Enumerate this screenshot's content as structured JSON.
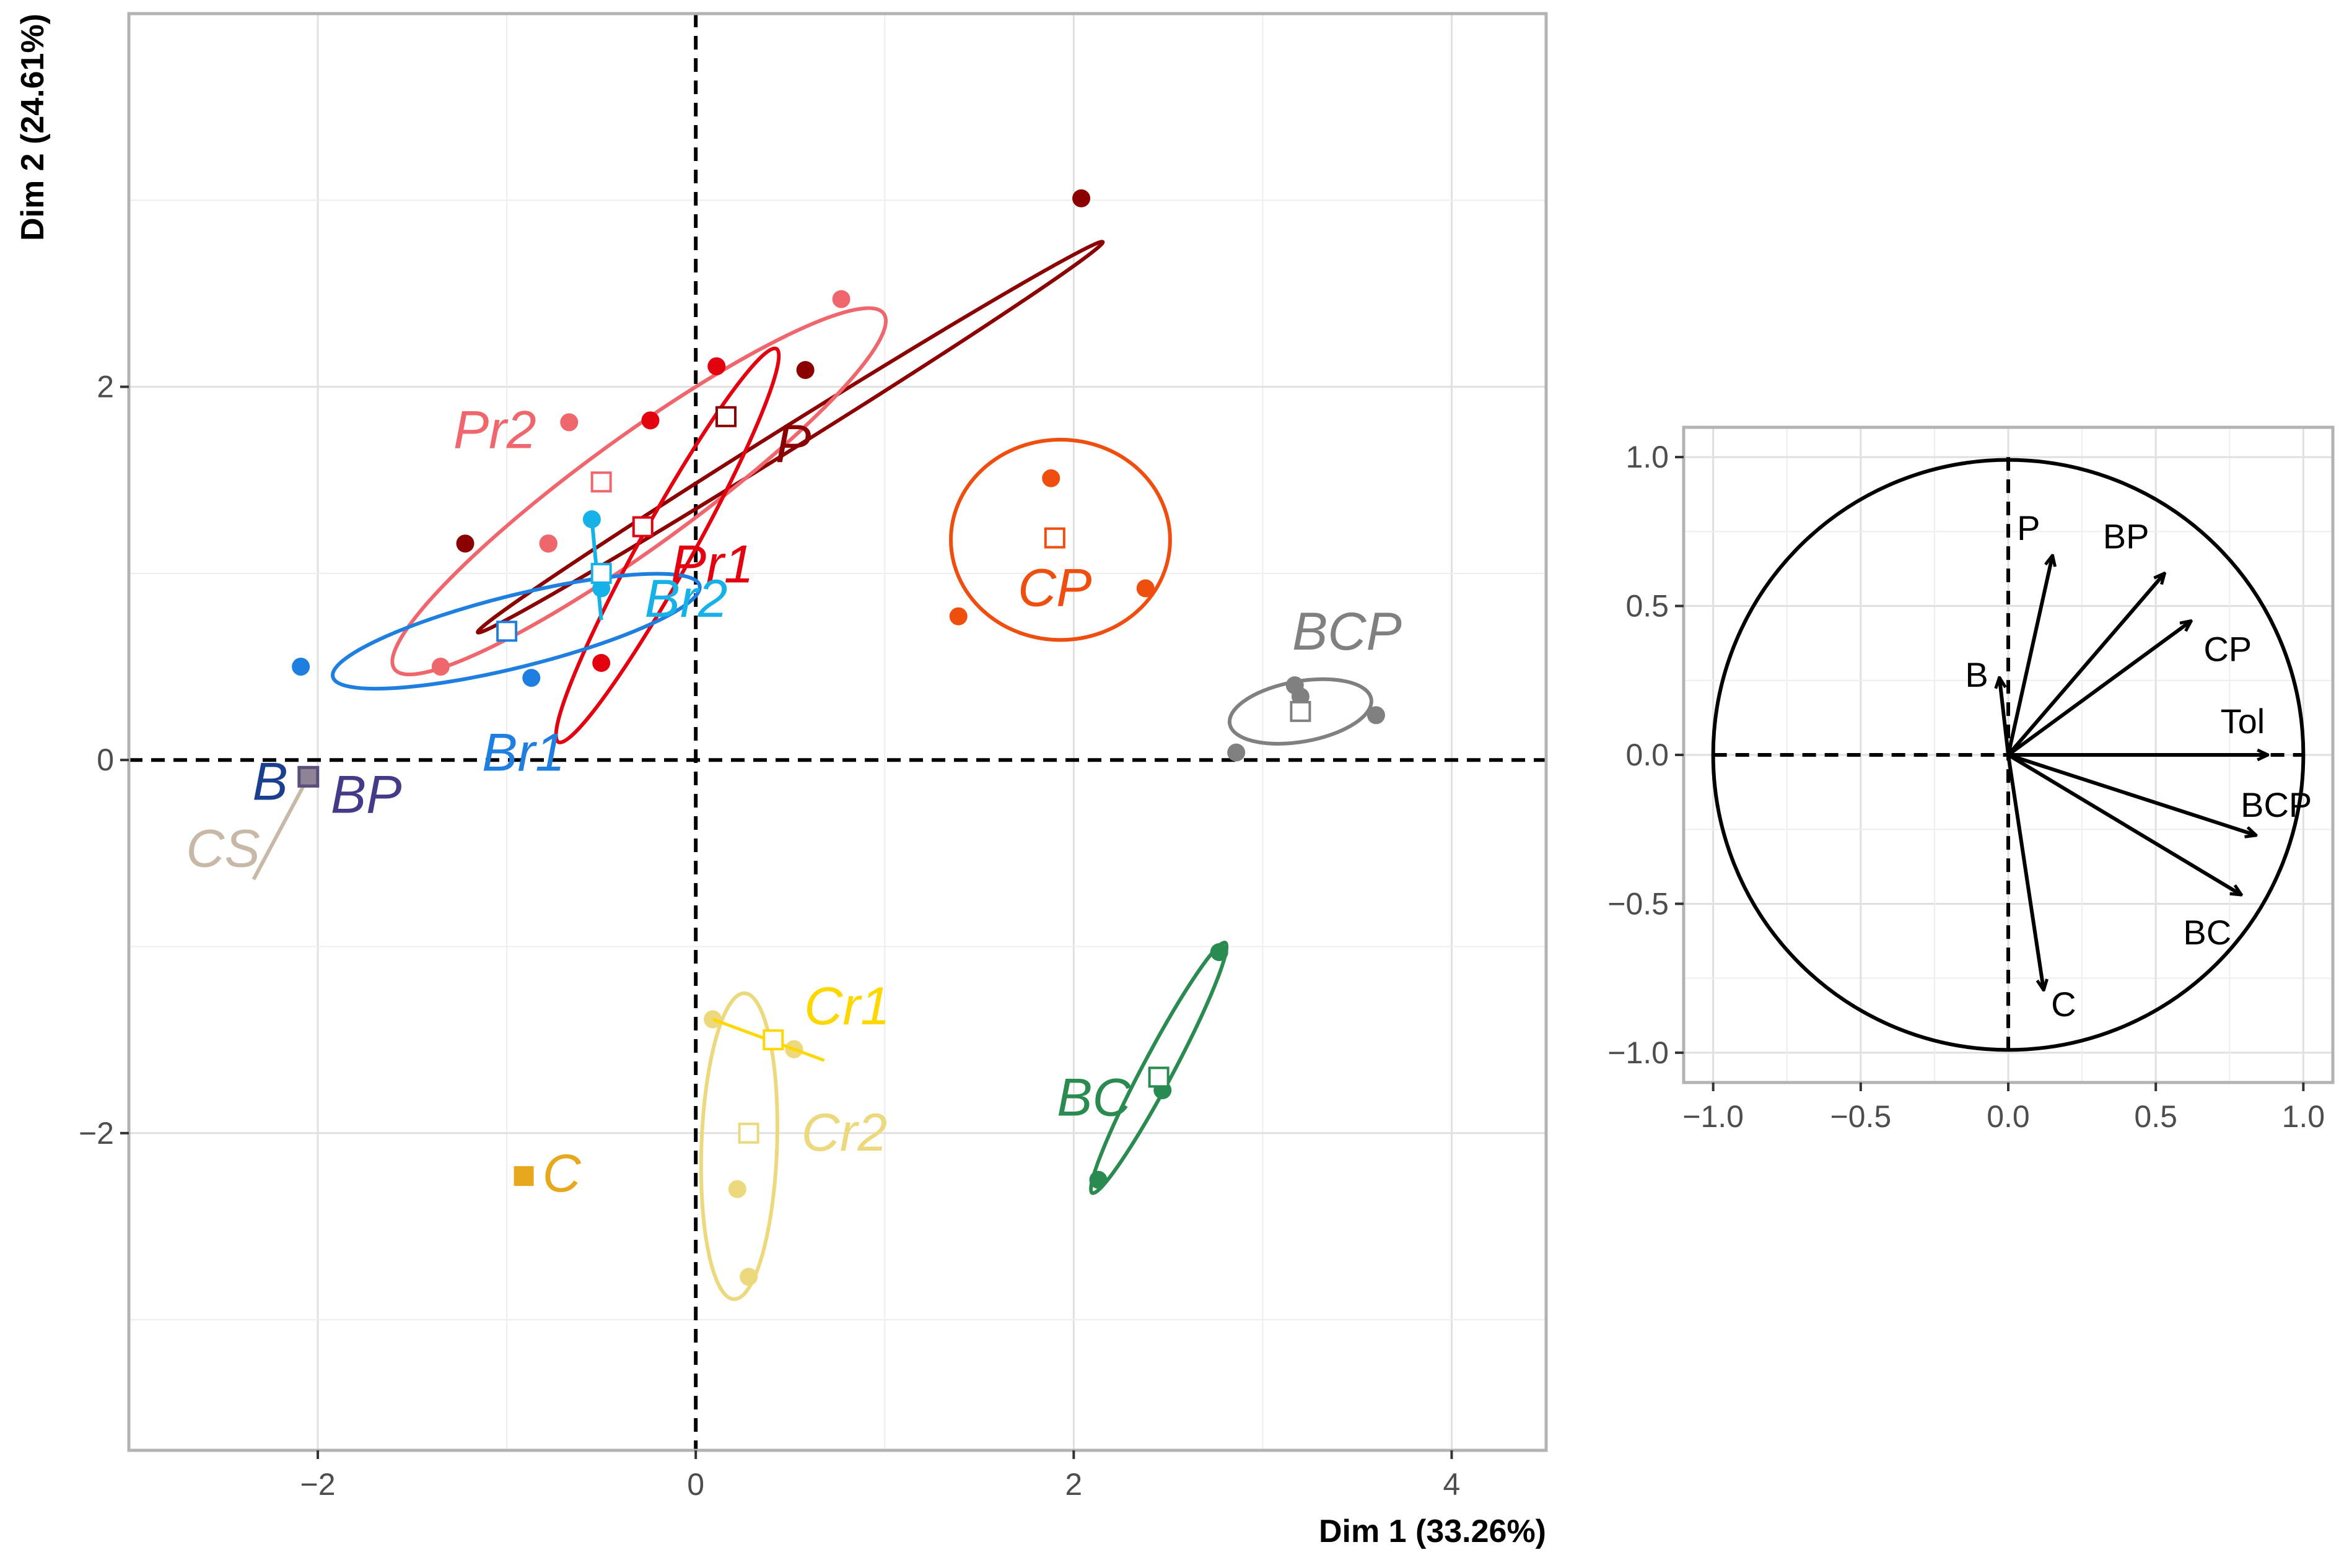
{
  "chart_data": [
    {
      "type": "scatter",
      "subtype": "pca-individuals-factor-map",
      "xlabel": "Dim 1 (33.26%)",
      "ylabel": "Dim 2 (24.61%)",
      "xlim": [
        -3.0,
        4.5
      ],
      "ylim": [
        -3.7,
        4.0
      ],
      "xticks": [
        -2,
        0,
        2,
        4
      ],
      "yticks": [
        -2,
        0,
        2
      ],
      "reference_lines": "dashed at x=0 and y=0",
      "grid": true,
      "groups": [
        {
          "label": "P",
          "color": "#8b0000",
          "center": [
            0.16,
            1.84
          ],
          "points": [
            [
              2.04,
              3.01
            ],
            [
              0.58,
              2.09
            ],
            [
              -0.78,
              1.16
            ],
            [
              -1.22,
              1.16
            ]
          ],
          "ellipse": {
            "cx": 0.5,
            "cy": 1.73,
            "rx": 1.95,
            "ry": 0.06,
            "angle": 32
          }
        },
        {
          "label": "Pr2",
          "color": "#f0666d",
          "center": [
            -0.5,
            1.49
          ],
          "points": [
            [
              0.77,
              2.47
            ],
            [
              -0.67,
              1.81
            ],
            [
              -0.78,
              1.16
            ],
            [
              -1.35,
              0.5
            ]
          ],
          "ellipse": {
            "cx": -0.3,
            "cy": 1.44,
            "rx": 1.6,
            "ry": 0.29,
            "angle": 36
          }
        },
        {
          "label": "Pr1",
          "color": "#e3000f",
          "center": [
            -0.28,
            1.25
          ],
          "points": [
            [
              0.11,
              2.11
            ],
            [
              -0.24,
              1.82
            ],
            [
              -0.5,
              0.52
            ]
          ],
          "ellipse": {
            "cx": -0.15,
            "cy": 1.15,
            "rx": 1.19,
            "ry": 0.14,
            "angle": 61
          }
        },
        {
          "label": "Br2",
          "color": "#16b1e6",
          "center": [
            -0.5,
            1.0
          ],
          "points": [
            [
              -0.55,
              1.29
            ],
            [
              -0.5,
              0.92
            ]
          ],
          "ellipse": null
        },
        {
          "label": "Br1",
          "color": "#1f7fe0",
          "center": [
            -1.0,
            0.69
          ],
          "points": [
            [
              -2.09,
              0.5
            ],
            [
              -0.87,
              0.44
            ]
          ],
          "ellipse": {
            "cx": -0.95,
            "cy": 0.69,
            "rx": 1.0,
            "ry": 0.19,
            "angle": 14
          }
        },
        {
          "label": "CP",
          "color": "#f04e0e",
          "center": [
            1.9,
            1.19
          ],
          "points": [
            [
              1.88,
              1.51
            ],
            [
              1.39,
              0.77
            ],
            [
              2.38,
              0.92
            ]
          ],
          "ellipse": {
            "cx": 1.93,
            "cy": 1.18,
            "rx": 0.58,
            "ry": 0.53,
            "angle": 0
          }
        },
        {
          "label": "BCP",
          "color": "#808080",
          "center": [
            3.2,
            0.26
          ],
          "points": [
            [
              3.17,
              0.4
            ],
            [
              3.2,
              0.34
            ],
            [
              3.6,
              0.24
            ],
            [
              2.86,
              0.04
            ]
          ],
          "ellipse": {
            "cx": 3.2,
            "cy": 0.26,
            "rx": 0.38,
            "ry": 0.16,
            "angle": 10
          }
        },
        {
          "label": "B",
          "color": "#1b3f8f",
          "center": [
            -2.05,
            -0.09
          ],
          "points": [],
          "ellipse": null
        },
        {
          "label": "BP",
          "color": "#433b87",
          "center": [
            -2.05,
            -0.09
          ],
          "points": [],
          "ellipse": null
        },
        {
          "label": "CS",
          "color": "#c8b8a8",
          "center": [
            -2.05,
            -0.09
          ],
          "points": [],
          "ellipse": null
        },
        {
          "label": "Cr1",
          "color": "#ffd700",
          "center": [
            0.41,
            -1.5
          ],
          "points": [
            [
              0.09,
              -1.39
            ],
            [
              0.52,
              -1.55
            ]
          ],
          "ellipse": null
        },
        {
          "label": "Cr2",
          "color": "#ecd97e",
          "center": [
            0.28,
            -2.0
          ],
          "points": [
            [
              0.09,
              -1.39
            ],
            [
              0.52,
              -1.55
            ],
            [
              0.22,
              -2.3
            ],
            [
              0.28,
              -2.77
            ]
          ],
          "ellipse": {
            "cx": 0.23,
            "cy": -2.07,
            "rx": 0.81,
            "ry": 0.2,
            "angle": 88
          }
        },
        {
          "label": "BC",
          "color": "#2a8b50",
          "center": [
            2.45,
            -1.7
          ],
          "points": [
            [
              2.77,
              -1.03
            ],
            [
              2.47,
              -1.77
            ],
            [
              2.13,
              -2.25
            ]
          ],
          "ellipse": {
            "cx": 2.45,
            "cy": -1.65,
            "rx": 0.75,
            "ry": 0.08,
            "angle": 62
          }
        },
        {
          "label": "C",
          "color": "#e8a81d",
          "center": [
            -0.91,
            -2.23
          ],
          "points": [],
          "ellipse": null
        }
      ]
    },
    {
      "type": "scatter",
      "subtype": "pca-variables-correlation-circle",
      "xlim": [
        -1.1,
        1.1
      ],
      "ylim": [
        -1.1,
        1.1
      ],
      "xticks": [
        -1.0,
        -0.5,
        0.0,
        0.5,
        1.0
      ],
      "yticks": [
        1.0,
        0.5,
        0.0,
        -0.5,
        -1.0
      ],
      "xtick_labels": [
        "−1.0",
        "−0.5",
        "0.0",
        "0.5",
        "1.0"
      ],
      "ytick_labels": [
        "1.0",
        "0.5",
        "0.0",
        "−0.5",
        "−1.0"
      ],
      "grid": true,
      "variables": [
        {
          "label": "P",
          "x": 0.15,
          "y": 0.67
        },
        {
          "label": "BP",
          "x": 0.53,
          "y": 0.61
        },
        {
          "label": "CP",
          "x": 0.62,
          "y": 0.45
        },
        {
          "label": "B",
          "x": -0.03,
          "y": 0.26
        },
        {
          "label": "Tol",
          "x": 0.88,
          "y": 0.0
        },
        {
          "label": "BCP",
          "x": 0.84,
          "y": -0.27
        },
        {
          "label": "BC",
          "x": 0.79,
          "y": -0.47
        },
        {
          "label": "C",
          "x": 0.12,
          "y": -0.79
        }
      ]
    }
  ]
}
